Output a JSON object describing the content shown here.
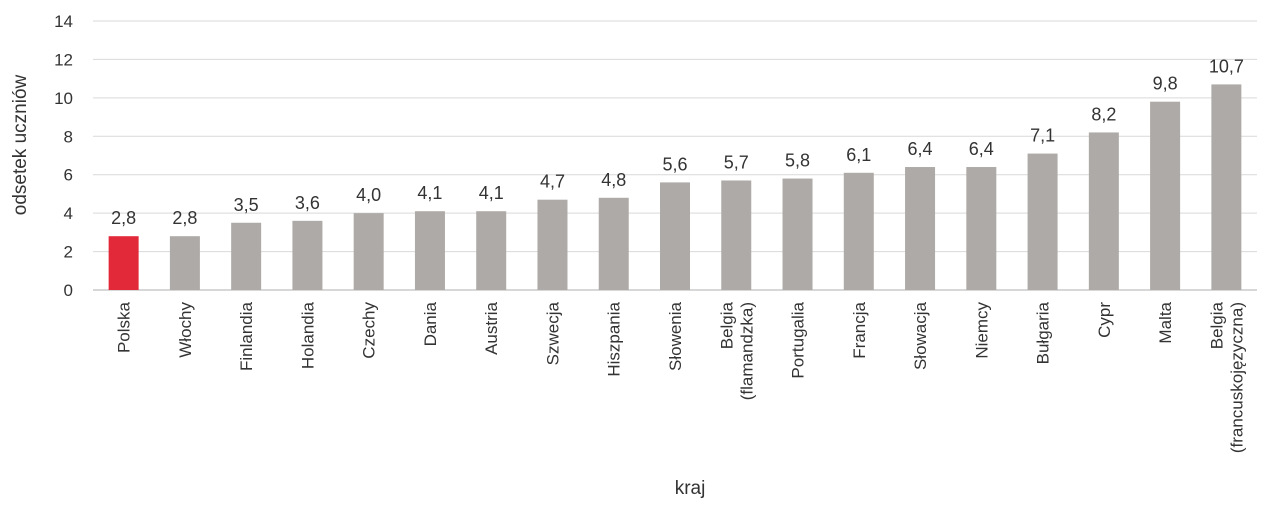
{
  "chart_data": {
    "type": "bar",
    "title": "",
    "xlabel": "kraj",
    "ylabel": "odsetek uczniów",
    "ylim": [
      0,
      14
    ],
    "yticks": [
      0,
      2,
      4,
      6,
      8,
      10,
      12,
      14
    ],
    "grid": true,
    "legend": "none",
    "categories": [
      [
        "Polska"
      ],
      [
        "Włochy"
      ],
      [
        "Finlandia"
      ],
      [
        "Holandia"
      ],
      [
        "Czechy"
      ],
      [
        "Dania"
      ],
      [
        "Austria"
      ],
      [
        "Szwecja"
      ],
      [
        "Hiszpania"
      ],
      [
        "Słowenia"
      ],
      [
        "Belgia",
        "(flamandzka)"
      ],
      [
        "Portugalia"
      ],
      [
        "Francja"
      ],
      [
        "Słowacja"
      ],
      [
        "Niemcy"
      ],
      [
        "Bułgaria"
      ],
      [
        "Cypr"
      ],
      [
        "Malta"
      ],
      [
        "Belgia",
        "(francuskojęzyczna)"
      ]
    ],
    "values": [
      2.8,
      2.8,
      3.5,
      3.6,
      4.0,
      4.1,
      4.1,
      4.7,
      4.8,
      5.6,
      5.7,
      5.8,
      6.1,
      6.4,
      6.4,
      7.1,
      8.2,
      9.8,
      10.7
    ],
    "value_labels": [
      "2,8",
      "2,8",
      "3,5",
      "3,6",
      "4,0",
      "4,1",
      "4,1",
      "4,7",
      "4,8",
      "5,6",
      "5,7",
      "5,8",
      "6,1",
      "6,4",
      "6,4",
      "7,1",
      "8,2",
      "9,8",
      "10,7"
    ],
    "colors": {
      "highlight": "#e1293a",
      "bar": "#aeaaa7"
    },
    "highlight_index": 0
  }
}
